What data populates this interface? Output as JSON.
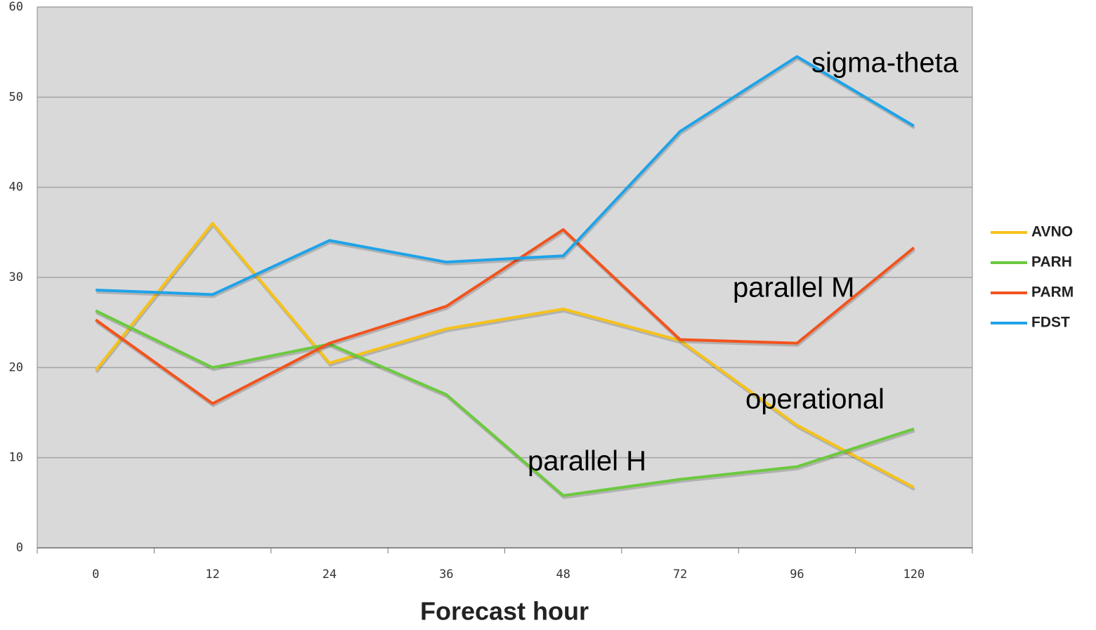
{
  "chart_data": {
    "type": "line",
    "x_label": "Forecast hour",
    "categories": [
      "0",
      "12",
      "24",
      "36",
      "48",
      "72",
      "96",
      "120"
    ],
    "series": [
      {
        "name": "AVNO",
        "color": "#f5c21b",
        "values": [
          19.7,
          36.0,
          20.5,
          24.3,
          26.5,
          23.0,
          13.6,
          6.7
        ]
      },
      {
        "name": "PARH",
        "color": "#6cc93f",
        "values": [
          26.3,
          20.0,
          22.6,
          17.0,
          5.8,
          7.6,
          9.0,
          13.2
        ]
      },
      {
        "name": "PARM",
        "color": "#f2531d",
        "values": [
          25.3,
          16.0,
          22.7,
          26.8,
          35.3,
          23.1,
          22.7,
          33.3
        ]
      },
      {
        "name": "FDST",
        "color": "#1fa3e8",
        "values": [
          28.6,
          28.1,
          34.1,
          31.7,
          32.4,
          46.2,
          54.5,
          46.8
        ]
      }
    ],
    "ylim": [
      0,
      60
    ],
    "yticks": [
      0,
      10,
      20,
      30,
      40,
      50,
      60
    ],
    "grid": true,
    "legend": "right",
    "annotations": [
      "sigma-theta",
      "parallel M",
      "operational",
      "parallel H"
    ]
  }
}
